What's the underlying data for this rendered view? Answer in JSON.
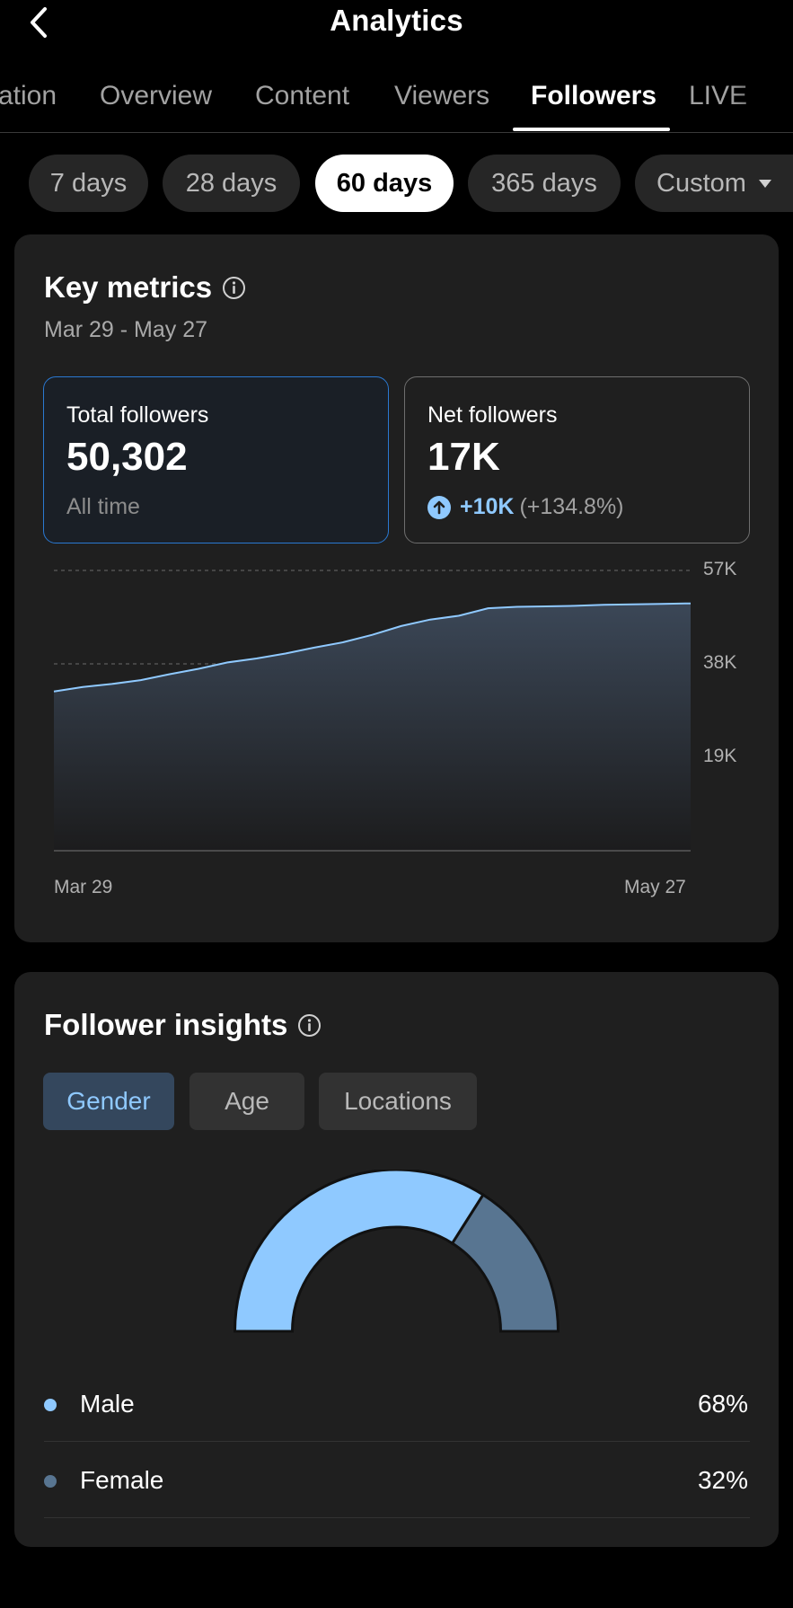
{
  "header": {
    "title": "Analytics",
    "back_icon": "chevron-left-icon"
  },
  "tabs": [
    {
      "label": "ation",
      "active": false
    },
    {
      "label": "Overview",
      "active": false
    },
    {
      "label": "Content",
      "active": false
    },
    {
      "label": "Viewers",
      "active": false
    },
    {
      "label": "Followers",
      "active": true
    },
    {
      "label": "LIVE",
      "active": false
    }
  ],
  "ranges": [
    {
      "label": "7 days",
      "active": false
    },
    {
      "label": "28 days",
      "active": false
    },
    {
      "label": "60 days",
      "active": true
    },
    {
      "label": "365 days",
      "active": false
    },
    {
      "label": "Custom",
      "active": false
    }
  ],
  "key_metrics": {
    "title": "Key metrics",
    "date_range": "Mar 29 - May 27",
    "total": {
      "label": "Total followers",
      "value": "50,302",
      "sub": "All time"
    },
    "net": {
      "label": "Net followers",
      "value": "17K",
      "delta": "+10K",
      "pct": "(+134.8%)"
    }
  },
  "chart_data": {
    "type": "area",
    "x_start_label": "Mar 29",
    "x_end_label": "May 27",
    "ytick_labels": [
      "57K",
      "38K",
      "19K"
    ],
    "yticks": [
      57000,
      38000,
      19000
    ],
    "ylim": [
      0,
      57000
    ],
    "grid": true,
    "series": [
      {
        "values": [
          32400,
          33300,
          33900,
          34700,
          35900,
          37000,
          38300,
          39100,
          40100,
          41300,
          42400,
          43900,
          45700,
          47000,
          47800,
          49300,
          49600,
          49700,
          49800,
          50000,
          50100,
          50200,
          50302
        ]
      }
    ],
    "colors": {
      "line": "#8fc9ff",
      "fill_top": "#3b4757",
      "fill_bottom": "#1c1c1d"
    }
  },
  "insights": {
    "title": "Follower insights",
    "segments": [
      {
        "label": "Gender",
        "active": true
      },
      {
        "label": "Age",
        "active": false
      },
      {
        "label": "Locations",
        "active": false
      }
    ],
    "gender": [
      {
        "name": "Male",
        "value": "68%",
        "share": 0.68,
        "color": "#8fc9ff"
      },
      {
        "name": "Female",
        "value": "32%",
        "share": 0.32,
        "color": "#587591"
      }
    ]
  }
}
